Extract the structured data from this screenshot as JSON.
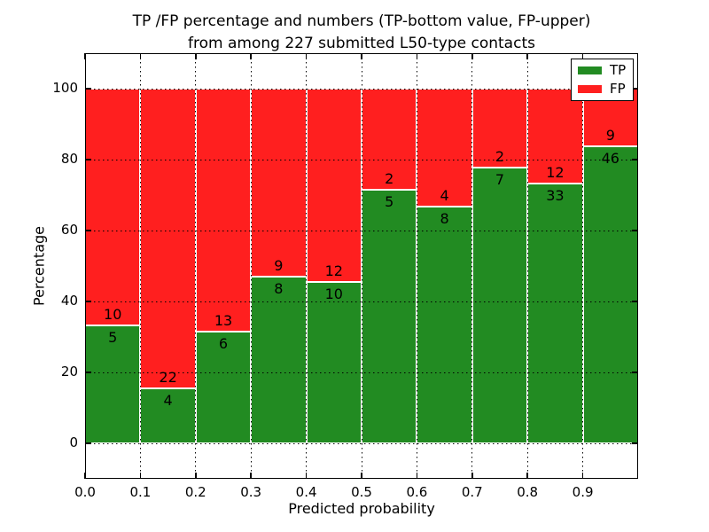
{
  "figure": {
    "title_line1": "TP /FP percentage and numbers (TP-bottom value, FP-upper)",
    "title_line2": "from among 227 submitted L50-type contacts",
    "xlabel": "Predicted probability",
    "ylabel": "Percentage"
  },
  "legend": {
    "position": "upper right",
    "items": [
      {
        "label": "TP",
        "color": "#228b22"
      },
      {
        "label": "FP",
        "color": "#ff1f1f"
      }
    ]
  },
  "chart_data": {
    "type": "bar",
    "stacked": true,
    "normalized_to_percent": true,
    "title": "TP /FP percentage and numbers (TP-bottom value, FP-upper)\nfrom among 227 submitted L50-type contacts",
    "xlabel": "Predicted probability",
    "ylabel": "Percentage",
    "total_contacts": 227,
    "bin_starts": [
      0.0,
      0.1,
      0.2,
      0.3,
      0.4,
      0.5,
      0.6,
      0.7,
      0.8,
      0.9
    ],
    "bar_width": 0.1,
    "series": [
      {
        "name": "TP",
        "color": "#228b22",
        "counts": [
          5,
          4,
          6,
          8,
          10,
          5,
          8,
          7,
          33,
          46
        ]
      },
      {
        "name": "FP",
        "color": "#ff1f1f",
        "counts": [
          10,
          22,
          13,
          9,
          12,
          2,
          4,
          2,
          12,
          9
        ]
      }
    ],
    "tp_percent_heights": [
      33.3,
      15.4,
      31.6,
      47.1,
      45.5,
      71.4,
      66.7,
      77.8,
      73.3,
      83.6
    ],
    "x_tick_labels": [
      "0.0",
      "0.1",
      "0.2",
      "0.3",
      "0.4",
      "0.5",
      "0.6",
      "0.7",
      "0.8",
      "0.9"
    ],
    "y_tick_values": [
      0,
      20,
      40,
      60,
      80,
      100
    ],
    "y_tick_labels": [
      "0",
      "20",
      "40",
      "60",
      "80",
      "100"
    ],
    "xlim": [
      0.0,
      1.0
    ],
    "ylim": [
      -10,
      110
    ],
    "grid": "dotted",
    "bar_edge_color": "#ffffff"
  }
}
